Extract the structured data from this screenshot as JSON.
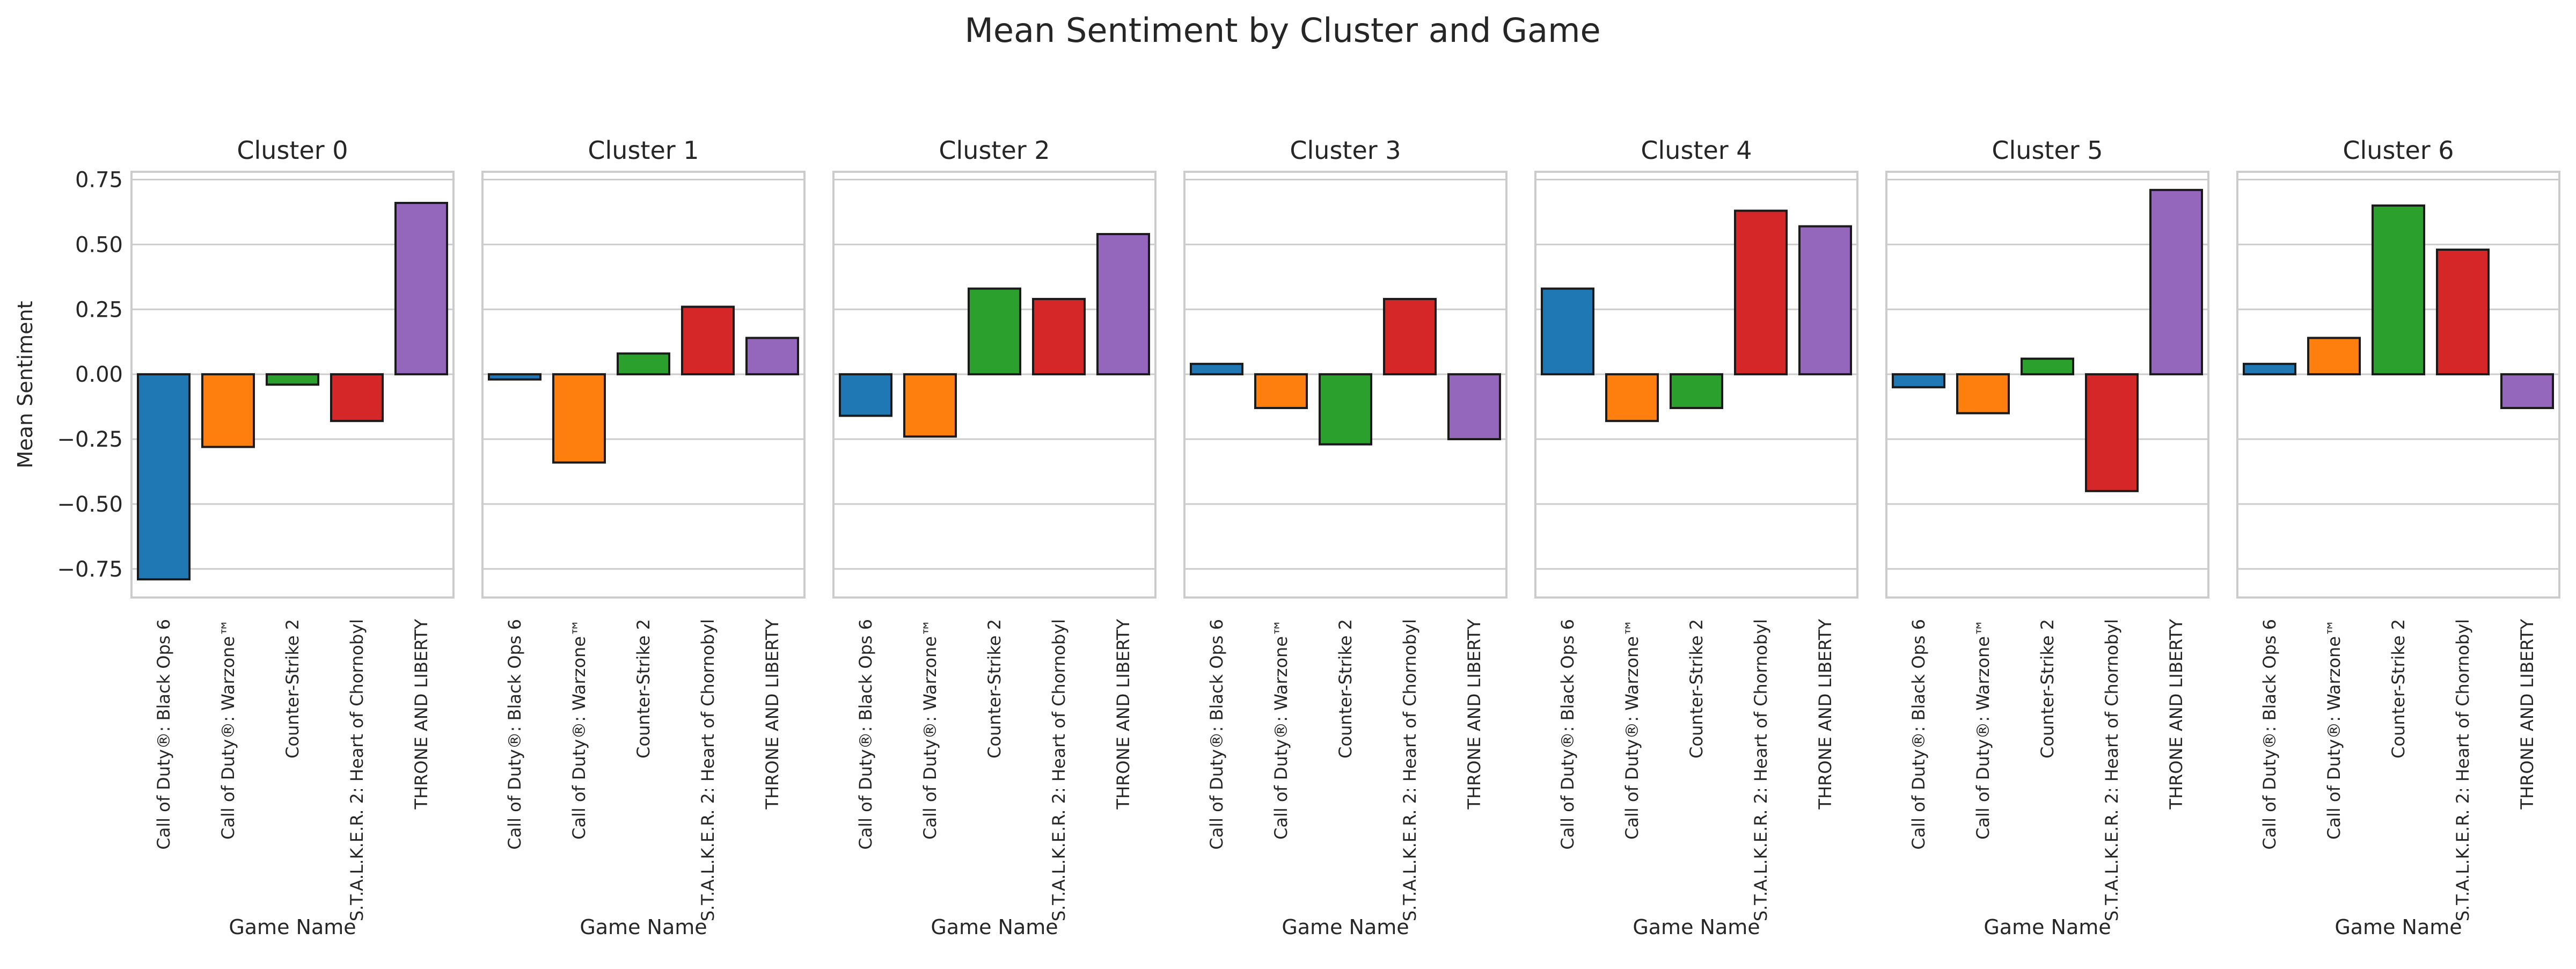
{
  "figure_title": "Mean Sentiment by Cluster and Game",
  "colors": [
    "#1f77b4",
    "#ff7f0e",
    "#2ca02c",
    "#d62728",
    "#9467bd"
  ],
  "chart_data": {
    "type": "bar",
    "title": "Mean Sentiment by Cluster and Game",
    "categories": [
      "Call of Duty®: Black Ops 6",
      "Call of Duty®: Warzone™",
      "Counter-Strike 2",
      "S.T.A.L.K.E.R. 2: Heart of Chornobyl",
      "THRONE AND LIBERTY"
    ],
    "xlabel": "Game Name",
    "ylabel": "Mean Sentiment",
    "ylim": [
      -0.86,
      0.78
    ],
    "yticks": [
      -0.75,
      -0.5,
      -0.25,
      0.0,
      0.25,
      0.5,
      0.75
    ],
    "ytick_labels": [
      "−0.75",
      "−0.50",
      "−0.25",
      "0.00",
      "0.25",
      "0.50",
      "0.75"
    ],
    "grid": true,
    "shared_y": true,
    "panels": [
      {
        "title": "Cluster 0",
        "values": [
          -0.79,
          -0.28,
          -0.04,
          -0.18,
          0.66
        ]
      },
      {
        "title": "Cluster 1",
        "values": [
          -0.02,
          -0.34,
          0.08,
          0.26,
          0.14
        ]
      },
      {
        "title": "Cluster 2",
        "values": [
          -0.16,
          -0.24,
          0.33,
          0.29,
          0.54
        ]
      },
      {
        "title": "Cluster 3",
        "values": [
          0.04,
          -0.13,
          -0.27,
          0.29,
          -0.25
        ]
      },
      {
        "title": "Cluster 4",
        "values": [
          0.33,
          -0.18,
          -0.13,
          0.63,
          0.57
        ]
      },
      {
        "title": "Cluster 5",
        "values": [
          -0.05,
          -0.15,
          0.06,
          -0.45,
          0.71
        ]
      },
      {
        "title": "Cluster 6",
        "values": [
          0.04,
          0.14,
          0.65,
          0.48,
          -0.13
        ]
      }
    ]
  }
}
